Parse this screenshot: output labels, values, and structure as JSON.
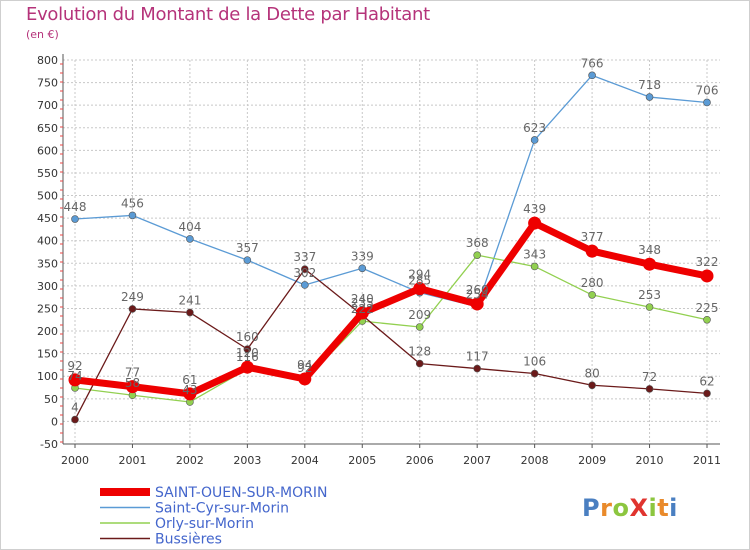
{
  "chart_data": {
    "type": "line",
    "title": "Evolution du Montant de la Dette par Habitant",
    "subtitle": "(en €)",
    "xlabel": "",
    "ylabel": "",
    "ylim": [
      -50,
      800
    ],
    "y_ticks": [
      "-50",
      "0",
      "50",
      "100",
      "150",
      "200",
      "250",
      "300",
      "350",
      "400",
      "450",
      "500",
      "550",
      "600",
      "650",
      "700",
      "750",
      "800"
    ],
    "x": [
      "2000",
      "2001",
      "2002",
      "2003",
      "2004",
      "2005",
      "2006",
      "2007",
      "2008",
      "2009",
      "2010",
      "2011"
    ],
    "grid": true,
    "legend_position": "bottom-left",
    "series": [
      {
        "name": "SAINT-OUEN-SUR-MORIN",
        "color": "#ee0000",
        "width": 7,
        "values": [
          92,
          77,
          61,
          120,
          94,
          240,
          294,
          260,
          439,
          377,
          348,
          322
        ]
      },
      {
        "name": "Saint-Cyr-sur-Morin",
        "color": "#5b9bd5",
        "width": 1.3,
        "values": [
          448,
          456,
          404,
          357,
          302,
          339,
          285,
          254,
          623,
          766,
          718,
          706
        ]
      },
      {
        "name": "Orly-sur-Morin",
        "color": "#92d050",
        "width": 1.3,
        "values": [
          74,
          58,
          43,
          116,
          92,
          222,
          209,
          368,
          343,
          280,
          253,
          225
        ]
      },
      {
        "name": "Bussières",
        "color": "#6b1a1a",
        "width": 1.3,
        "values": [
          4,
          249,
          241,
          160,
          337,
          235,
          128,
          117,
          106,
          80,
          72,
          62
        ]
      }
    ]
  },
  "logo": {
    "text": "ProXiti",
    "colors": [
      "#4a7fc1",
      "#e98a2b",
      "#8cc63f",
      "#e0342f"
    ]
  },
  "colors": {
    "title": "#b5337a",
    "grid": "#c8c8c8",
    "axis_text": "#333333",
    "legend_text": "#4466cc",
    "value_label": "#666666"
  }
}
